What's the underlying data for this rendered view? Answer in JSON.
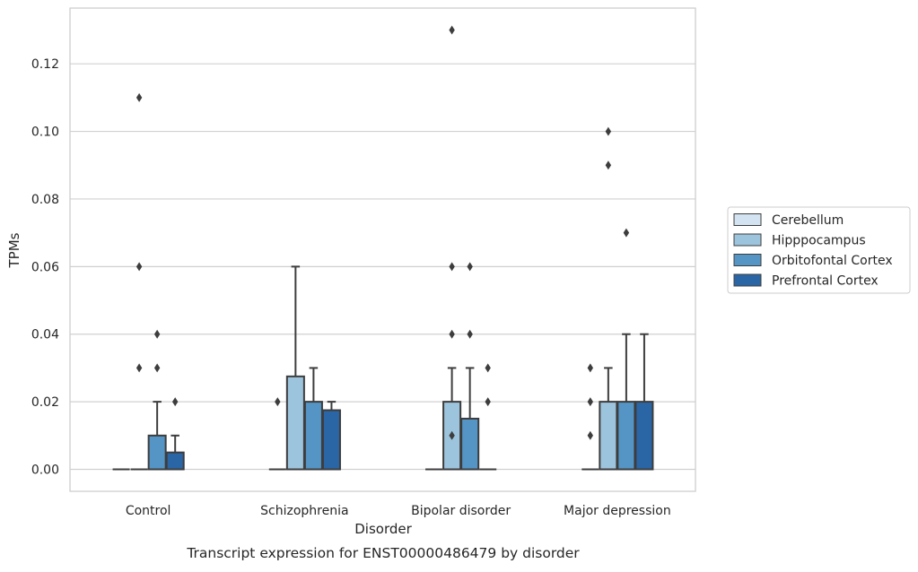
{
  "chart_data": {
    "type": "boxplot",
    "title": "Transcript expression for ENST00000486479 by disorder",
    "xlabel": "Disorder",
    "ylabel": "TPMs",
    "categories": [
      "Control",
      "Schizophrenia",
      "Bipolar disorder",
      "Major depression"
    ],
    "ylim": [
      -0.0065,
      0.1365
    ],
    "yticks": [
      0.0,
      0.02,
      0.04,
      0.06,
      0.08,
      0.1,
      0.12
    ],
    "ytick_labels": [
      "0.00",
      "0.02",
      "0.04",
      "0.06",
      "0.08",
      "0.10",
      "0.12"
    ],
    "grid": "horizontal",
    "legend_position": "right",
    "series": [
      {
        "name": "Cerebellum",
        "color": "#d3e3f1",
        "boxes": [
          {
            "q1": 0,
            "median": 0,
            "q3": 0,
            "whisker_low": 0,
            "whisker_high": 0,
            "outliers": []
          },
          {
            "q1": 0,
            "median": 0,
            "q3": 0,
            "whisker_low": 0,
            "whisker_high": 0,
            "outliers": []
          },
          {
            "q1": 0,
            "median": 0,
            "q3": 0,
            "whisker_low": 0,
            "whisker_high": 0,
            "outliers": []
          },
          {
            "q1": 0,
            "median": 0,
            "q3": 0,
            "whisker_low": 0,
            "whisker_high": 0,
            "outliers": []
          }
        ]
      },
      {
        "name": "Hipppocampus",
        "color": "#9dc4dd",
        "boxes": [
          {
            "q1": 0,
            "median": 0,
            "q3": 0,
            "whisker_low": 0,
            "whisker_high": 0,
            "outliers": [
              0.03,
              0.06,
              0.11
            ]
          },
          {
            "q1": 0,
            "median": 0,
            "q3": 0.0275,
            "whisker_low": 0,
            "whisker_high": 0.06,
            "outliers": []
          },
          {
            "q1": 0,
            "median": 0,
            "q3": 0.02,
            "whisker_low": 0,
            "whisker_high": 0.03,
            "outliers": [
              0.01,
              0.04,
              0.06,
              0.13
            ]
          },
          {
            "q1": 0,
            "median": 0,
            "q3": 0.02,
            "whisker_low": 0,
            "whisker_high": 0.03,
            "outliers": [
              0.09,
              0.1
            ]
          }
        ]
      },
      {
        "name": "Orbitofontal Cortex",
        "color": "#5495c5",
        "boxes": [
          {
            "q1": 0,
            "median": 0,
            "q3": 0.01,
            "whisker_low": 0,
            "whisker_high": 0.02,
            "outliers": [
              0.03,
              0.04
            ]
          },
          {
            "q1": 0,
            "median": 0,
            "q3": 0.02,
            "whisker_low": 0,
            "whisker_high": 0.03,
            "outliers": []
          },
          {
            "q1": 0,
            "median": 0,
            "q3": 0.015,
            "whisker_low": 0,
            "whisker_high": 0.03,
            "outliers": [
              0.04,
              0.06
            ]
          },
          {
            "q1": 0,
            "median": 0,
            "q3": 0.02,
            "whisker_low": 0,
            "whisker_high": 0.04,
            "outliers": [
              0.07
            ]
          }
        ]
      },
      {
        "name": "Prefrontal Cortex",
        "color": "#2a66a5",
        "boxes": [
          {
            "q1": 0,
            "median": 0,
            "q3": 0.005,
            "whisker_low": 0,
            "whisker_high": 0.01,
            "outliers": [
              0.02
            ]
          },
          {
            "q1": 0,
            "median": 0,
            "q3": 0.0175,
            "whisker_low": 0,
            "whisker_high": 0.02,
            "outliers": []
          },
          {
            "q1": 0,
            "median": 0,
            "q3": 0,
            "whisker_low": 0,
            "whisker_high": 0,
            "outliers": [
              0.02,
              0.03
            ]
          },
          {
            "q1": 0,
            "median": 0,
            "q3": 0.02,
            "whisker_low": 0,
            "whisker_high": 0.04,
            "outliers": []
          }
        ]
      }
    ],
    "extra_outliers": [
      {
        "category_index": 0,
        "series_index": 0,
        "values": []
      },
      {
        "category_index": 1,
        "series_index": 0,
        "values": [
          0.02
        ]
      },
      {
        "category_index": 3,
        "series_index": 0,
        "values": [
          0.01,
          0.02,
          0.03
        ]
      }
    ]
  }
}
